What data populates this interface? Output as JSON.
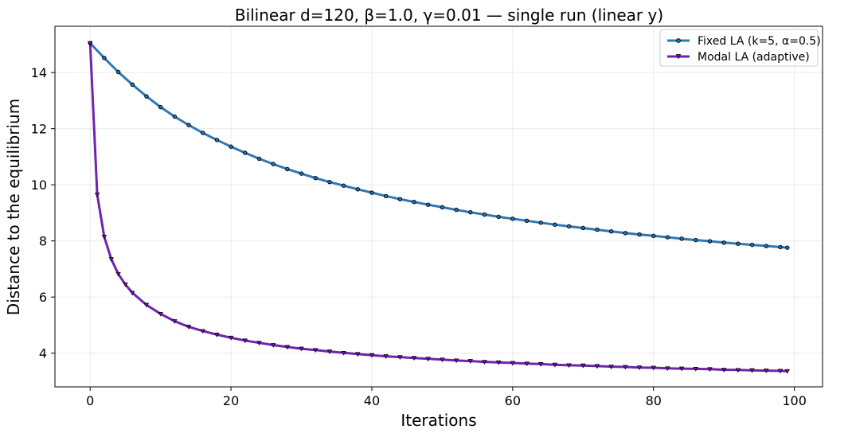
{
  "chart_data": {
    "type": "line",
    "title": "Bilinear d=120, β=1.0, γ=0.01 — single run (linear y)",
    "xlabel": "Iterations",
    "ylabel": "Distance to the equilibrium",
    "xlim": [
      -5,
      104
    ],
    "ylim": [
      2.8,
      15.65
    ],
    "xticks": [
      0,
      20,
      40,
      60,
      80,
      100
    ],
    "yticks": [
      4,
      6,
      8,
      10,
      12,
      14
    ],
    "grid": true,
    "legend_position": "top-right",
    "series": [
      {
        "name": "Fixed LA (k=5, α=0.5)",
        "color": "#2f78b5",
        "marker": "circle",
        "x": [
          0,
          2,
          4,
          6,
          8,
          10,
          12,
          14,
          16,
          18,
          20,
          22,
          24,
          26,
          28,
          30,
          32,
          34,
          36,
          38,
          40,
          42,
          44,
          46,
          48,
          50,
          52,
          54,
          56,
          58,
          60,
          62,
          64,
          66,
          68,
          70,
          72,
          74,
          76,
          78,
          80,
          82,
          84,
          86,
          88,
          90,
          92,
          94,
          96,
          98,
          99
        ],
        "y": [
          15.05,
          14.52,
          14.02,
          13.57,
          13.15,
          12.77,
          12.43,
          12.13,
          11.85,
          11.6,
          11.36,
          11.14,
          10.93,
          10.74,
          10.56,
          10.4,
          10.24,
          10.1,
          9.97,
          9.84,
          9.72,
          9.6,
          9.49,
          9.39,
          9.29,
          9.2,
          9.11,
          9.02,
          8.94,
          8.86,
          8.79,
          8.72,
          8.65,
          8.58,
          8.52,
          8.46,
          8.4,
          8.34,
          8.28,
          8.23,
          8.18,
          8.13,
          8.08,
          8.03,
          7.99,
          7.94,
          7.9,
          7.86,
          7.82,
          7.78,
          7.76
        ]
      },
      {
        "name": "Modal LA (adaptive)",
        "color": "#7022b0",
        "marker": "triangle-down",
        "x": [
          0,
          1,
          2,
          3,
          4,
          5,
          6,
          8,
          10,
          12,
          14,
          16,
          18,
          20,
          22,
          24,
          26,
          28,
          30,
          32,
          34,
          36,
          38,
          40,
          42,
          44,
          46,
          48,
          50,
          52,
          54,
          56,
          58,
          60,
          62,
          64,
          66,
          68,
          70,
          72,
          74,
          76,
          78,
          80,
          82,
          84,
          86,
          88,
          90,
          92,
          94,
          96,
          98,
          99
        ],
        "y": [
          15.05,
          9.65,
          8.15,
          7.35,
          6.82,
          6.45,
          6.15,
          5.72,
          5.4,
          5.14,
          4.94,
          4.79,
          4.66,
          4.55,
          4.45,
          4.37,
          4.29,
          4.22,
          4.16,
          4.11,
          4.06,
          4.01,
          3.97,
          3.93,
          3.89,
          3.86,
          3.83,
          3.8,
          3.77,
          3.74,
          3.72,
          3.69,
          3.67,
          3.65,
          3.63,
          3.61,
          3.59,
          3.57,
          3.56,
          3.54,
          3.52,
          3.51,
          3.49,
          3.48,
          3.46,
          3.45,
          3.44,
          3.43,
          3.41,
          3.4,
          3.39,
          3.38,
          3.37,
          3.36
        ]
      }
    ]
  }
}
